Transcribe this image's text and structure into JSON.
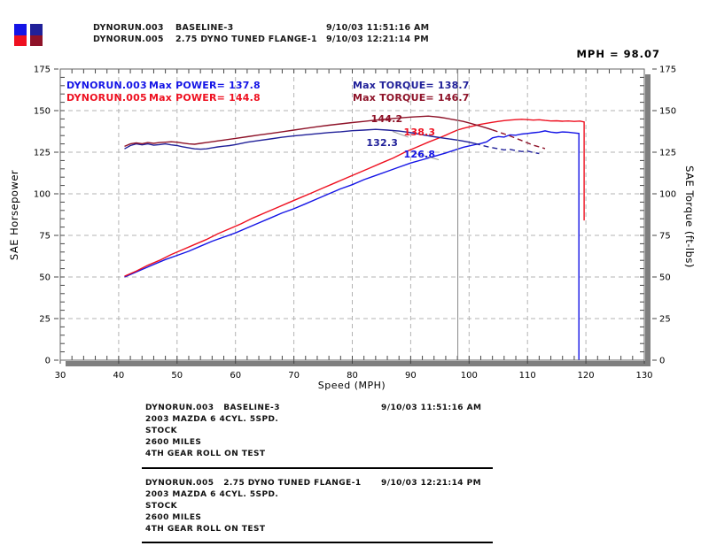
{
  "header": {
    "runs": [
      {
        "file": "DYNORUN.003",
        "desc": "BASELINE-3",
        "timestamp": "9/10/03 11:51:16 AM"
      },
      {
        "file": "DYNORUN.005",
        "desc": "2.75 DYNO TUNED FLANGE-1",
        "timestamp": "9/10/03 12:21:14 PM"
      }
    ],
    "swatches": {
      "run1_power": "#1414e6",
      "run2_power": "#ee1020",
      "run1_torque": "#202099",
      "run2_torque": "#8e1228"
    }
  },
  "cursor_readout": "MPH = 98.07",
  "chart_data": {
    "type": "line",
    "title": "",
    "xlabel": "Speed (MPH)",
    "ylabel_left": "SAE Horsepower",
    "ylabel_right": "SAE Torque (ft-lbs)",
    "xlim": [
      30,
      130
    ],
    "ylim": [
      0,
      175
    ],
    "xticks": [
      30,
      40,
      50,
      60,
      70,
      80,
      90,
      100,
      110,
      120,
      130
    ],
    "yticks": [
      0,
      25,
      50,
      75,
      100,
      125,
      150,
      175
    ],
    "x_minor_step": 2,
    "y_minor_step": 5,
    "grid": "dashed",
    "legend_position": "top-left-inside",
    "legend": [
      {
        "run": "DYNORUN.003",
        "power_label": "Max POWER= 137.8",
        "torque_label": "Max TORQUE= 138.7",
        "power_color": "#1414e6",
        "torque_color": "#202099"
      },
      {
        "run": "DYNORUN.005",
        "power_label": "Max POWER= 144.8",
        "torque_label": "Max TORQUE= 146.7",
        "power_color": "#ee1020",
        "torque_color": "#8e1228"
      }
    ],
    "cursor": {
      "mph": 98.07
    },
    "cursor_labels": [
      {
        "text": "144.2",
        "color": "#8e1228",
        "mph": 83.2,
        "val": 148.5
      },
      {
        "text": "138.3",
        "color": "#ee1020",
        "mph": 88.8,
        "val": 140.5
      },
      {
        "text": "132.3",
        "color": "#202099",
        "mph": 82.4,
        "val": 134.2
      },
      {
        "text": "126.8",
        "color": "#1414e6",
        "mph": 88.8,
        "val": 127.2
      }
    ],
    "leaders": [
      {
        "x1": 86.9,
        "y1": 137.5,
        "x2": 89.6,
        "y2": 134.0
      },
      {
        "x1": 90.5,
        "y1": 124.5,
        "x2": 94.8,
        "y2": 120.5
      }
    ],
    "series": [
      {
        "name": "dynorun-003-power",
        "color": "#1414e6",
        "max": 137.8,
        "points": [
          [
            41,
            50
          ],
          [
            42,
            51.5
          ],
          [
            44,
            54.5
          ],
          [
            46,
            57.5
          ],
          [
            48,
            60.5
          ],
          [
            50,
            63
          ],
          [
            52,
            65.5
          ],
          [
            54,
            68.5
          ],
          [
            56,
            71.5
          ],
          [
            58,
            74
          ],
          [
            60,
            76.5
          ],
          [
            62,
            79.5
          ],
          [
            64,
            82.5
          ],
          [
            66,
            85.5
          ],
          [
            68,
            88.5
          ],
          [
            70,
            91
          ],
          [
            72,
            94
          ],
          [
            74,
            97
          ],
          [
            76,
            100
          ],
          [
            78,
            103
          ],
          [
            80,
            105.5
          ],
          [
            82,
            108.5
          ],
          [
            84,
            111
          ],
          [
            86,
            113.5
          ],
          [
            88,
            116
          ],
          [
            90,
            118.5
          ],
          [
            92,
            120.5
          ],
          [
            94,
            122.5
          ],
          [
            96,
            124.5
          ],
          [
            98,
            126.8
          ],
          [
            99,
            128
          ],
          [
            100,
            128.8
          ],
          [
            101,
            129.5
          ],
          [
            102,
            130.2
          ],
          [
            103,
            131.2
          ],
          [
            104,
            133.6
          ],
          [
            105,
            134.4
          ],
          [
            106,
            134.1
          ],
          [
            107,
            135.4
          ],
          [
            108,
            135.2
          ],
          [
            109,
            135.9
          ],
          [
            110,
            136.3
          ],
          [
            111,
            136.7
          ],
          [
            112,
            137.1
          ],
          [
            113,
            137.8
          ],
          [
            114,
            137.1
          ],
          [
            115,
            136.7
          ],
          [
            116,
            137.2
          ],
          [
            117,
            137
          ],
          [
            118,
            136.6
          ],
          [
            118.8,
            136.3
          ],
          [
            118.8,
            0
          ]
        ]
      },
      {
        "name": "dynorun-005-power",
        "color": "#ee1020",
        "max": 144.8,
        "points": [
          [
            41,
            50.5
          ],
          [
            43,
            53.5
          ],
          [
            45,
            57
          ],
          [
            47,
            60
          ],
          [
            49,
            63.5
          ],
          [
            51,
            66.5
          ],
          [
            53,
            69.5
          ],
          [
            55,
            72.5
          ],
          [
            57,
            76
          ],
          [
            59,
            79
          ],
          [
            61,
            82
          ],
          [
            63,
            85.5
          ],
          [
            65,
            88.5
          ],
          [
            67,
            91.5
          ],
          [
            69,
            94.5
          ],
          [
            71,
            97.5
          ],
          [
            73,
            100.5
          ],
          [
            75,
            103.5
          ],
          [
            77,
            106.5
          ],
          [
            79,
            109.5
          ],
          [
            81,
            112.5
          ],
          [
            83,
            115.5
          ],
          [
            85,
            118.5
          ],
          [
            87,
            121.5
          ],
          [
            89,
            125
          ],
          [
            91,
            128
          ],
          [
            93,
            131
          ],
          [
            95,
            133.8
          ],
          [
            96,
            135.2
          ],
          [
            97,
            136.8
          ],
          [
            98,
            138.3
          ],
          [
            99,
            139.3
          ],
          [
            100,
            140.2
          ],
          [
            101,
            141
          ],
          [
            102,
            141.8
          ],
          [
            103,
            142.4
          ],
          [
            104,
            143
          ],
          [
            105,
            143.5
          ],
          [
            106,
            144
          ],
          [
            107,
            144.3
          ],
          [
            108,
            144.6
          ],
          [
            109,
            144.8
          ],
          [
            110,
            144.6
          ],
          [
            111,
            144.3
          ],
          [
            112,
            144.5
          ],
          [
            113,
            144.1
          ],
          [
            114,
            143.8
          ],
          [
            115,
            143.9
          ],
          [
            116,
            143.6
          ],
          [
            117,
            143.8
          ],
          [
            118,
            143.5
          ],
          [
            119,
            143.7
          ],
          [
            119.7,
            143.2
          ],
          [
            119.7,
            84
          ]
        ]
      },
      {
        "name": "dynorun-003-torque",
        "color": "#202099",
        "max": 138.7,
        "points": [
          [
            41,
            127
          ],
          [
            42,
            129
          ],
          [
            43,
            130
          ],
          [
            44,
            129.4
          ],
          [
            45,
            130
          ],
          [
            46,
            129.2
          ],
          [
            47,
            129.6
          ],
          [
            48,
            130
          ],
          [
            49,
            129.4
          ],
          [
            50,
            129
          ],
          [
            51,
            128.2
          ],
          [
            52,
            127.6
          ],
          [
            53,
            127
          ],
          [
            54,
            126.8
          ],
          [
            55,
            127
          ],
          [
            56,
            127.6
          ],
          [
            57,
            128.2
          ],
          [
            58,
            128.6
          ],
          [
            59,
            129
          ],
          [
            60,
            129.6
          ],
          [
            62,
            131
          ],
          [
            64,
            132
          ],
          [
            66,
            133
          ],
          [
            68,
            134
          ],
          [
            70,
            134.8
          ],
          [
            72,
            135.5
          ],
          [
            74,
            136.1
          ],
          [
            76,
            136.8
          ],
          [
            78,
            137.3
          ],
          [
            80,
            137.9
          ],
          [
            82,
            138.3
          ],
          [
            84,
            138.7
          ],
          [
            86,
            138.3
          ],
          [
            88,
            137.7
          ],
          [
            90,
            136.8
          ],
          [
            92,
            135.5
          ],
          [
            94,
            134.3
          ],
          [
            96,
            133.3
          ],
          [
            98,
            132.3
          ],
          [
            99,
            131.7
          ],
          [
            100,
            131
          ],
          [
            101,
            130.2
          ]
        ],
        "dashed_tail": [
          [
            101,
            130.2
          ],
          [
            102,
            129.3
          ],
          [
            103,
            128.4
          ],
          [
            104,
            127.7
          ],
          [
            105,
            127
          ],
          [
            106,
            126.4
          ],
          [
            107,
            126.7
          ],
          [
            108,
            126
          ],
          [
            109,
            125.4
          ],
          [
            110,
            125.7
          ],
          [
            111,
            124.8
          ],
          [
            112,
            124.2
          ]
        ]
      },
      {
        "name": "dynorun-005-torque",
        "color": "#8e1228",
        "max": 146.7,
        "points": [
          [
            41,
            128.5
          ],
          [
            42,
            130
          ],
          [
            43,
            130.6
          ],
          [
            44,
            130.1
          ],
          [
            45,
            130.8
          ],
          [
            46,
            130.3
          ],
          [
            47,
            130.8
          ],
          [
            48,
            131
          ],
          [
            49,
            131.3
          ],
          [
            50,
            131
          ],
          [
            51,
            130.5
          ],
          [
            52,
            130
          ],
          [
            53,
            129.8
          ],
          [
            54,
            130.3
          ],
          [
            55,
            130.8
          ],
          [
            56,
            131.3
          ],
          [
            57,
            131.8
          ],
          [
            58,
            132.3
          ],
          [
            60,
            133.3
          ],
          [
            62,
            134.3
          ],
          [
            64,
            135.3
          ],
          [
            66,
            136.3
          ],
          [
            68,
            137.3
          ],
          [
            70,
            138.3
          ],
          [
            72,
            139.3
          ],
          [
            74,
            140.3
          ],
          [
            76,
            141.2
          ],
          [
            78,
            142
          ],
          [
            80,
            142.8
          ],
          [
            82,
            143.5
          ],
          [
            84,
            144.3
          ],
          [
            86,
            145
          ],
          [
            88,
            145.6
          ],
          [
            90,
            146.1
          ],
          [
            92,
            146.5
          ],
          [
            93,
            146.7
          ],
          [
            94,
            146.4
          ],
          [
            95,
            146
          ],
          [
            96,
            145.4
          ],
          [
            97,
            144.8
          ],
          [
            98,
            144.2
          ],
          [
            99,
            143.5
          ],
          [
            100,
            142.6
          ],
          [
            101,
            141.6
          ],
          [
            102,
            140.6
          ],
          [
            103,
            139.5
          ],
          [
            104,
            138.4
          ]
        ],
        "dashed_tail": [
          [
            104,
            138.4
          ],
          [
            105,
            137.2
          ],
          [
            106,
            136
          ],
          [
            107,
            134.8
          ],
          [
            108,
            133.4
          ],
          [
            109,
            132
          ],
          [
            110,
            130.6
          ],
          [
            111,
            129.2
          ],
          [
            112,
            128.2
          ],
          [
            113,
            127.2
          ]
        ]
      }
    ],
    "colors": {
      "grid": "#b3b3b3",
      "frame": "#666666",
      "shadow": "#7f7f7f",
      "cursor": "#8a8a8a",
      "tick": "#444444",
      "leader": "#999999"
    }
  },
  "footer": {
    "blocks": [
      {
        "title": "DYNORUN.003   BASELINE-3",
        "timestamp": "9/10/03 11:51:16 AM",
        "lines": [
          "2003 MAZDA 6 4CYL. 5SPD.",
          "STOCK",
          "2600 MILES",
          "4TH GEAR ROLL ON TEST"
        ]
      },
      {
        "title": "DYNORUN.005   2.75 DYNO TUNED FLANGE-1",
        "timestamp": "9/10/03 12:21:14 PM",
        "lines": [
          "2003 MAZDA 6 4CYL. 5SPD.",
          "STOCK",
          "2600 MILES",
          "4TH GEAR ROLL ON TEST"
        ]
      }
    ]
  }
}
